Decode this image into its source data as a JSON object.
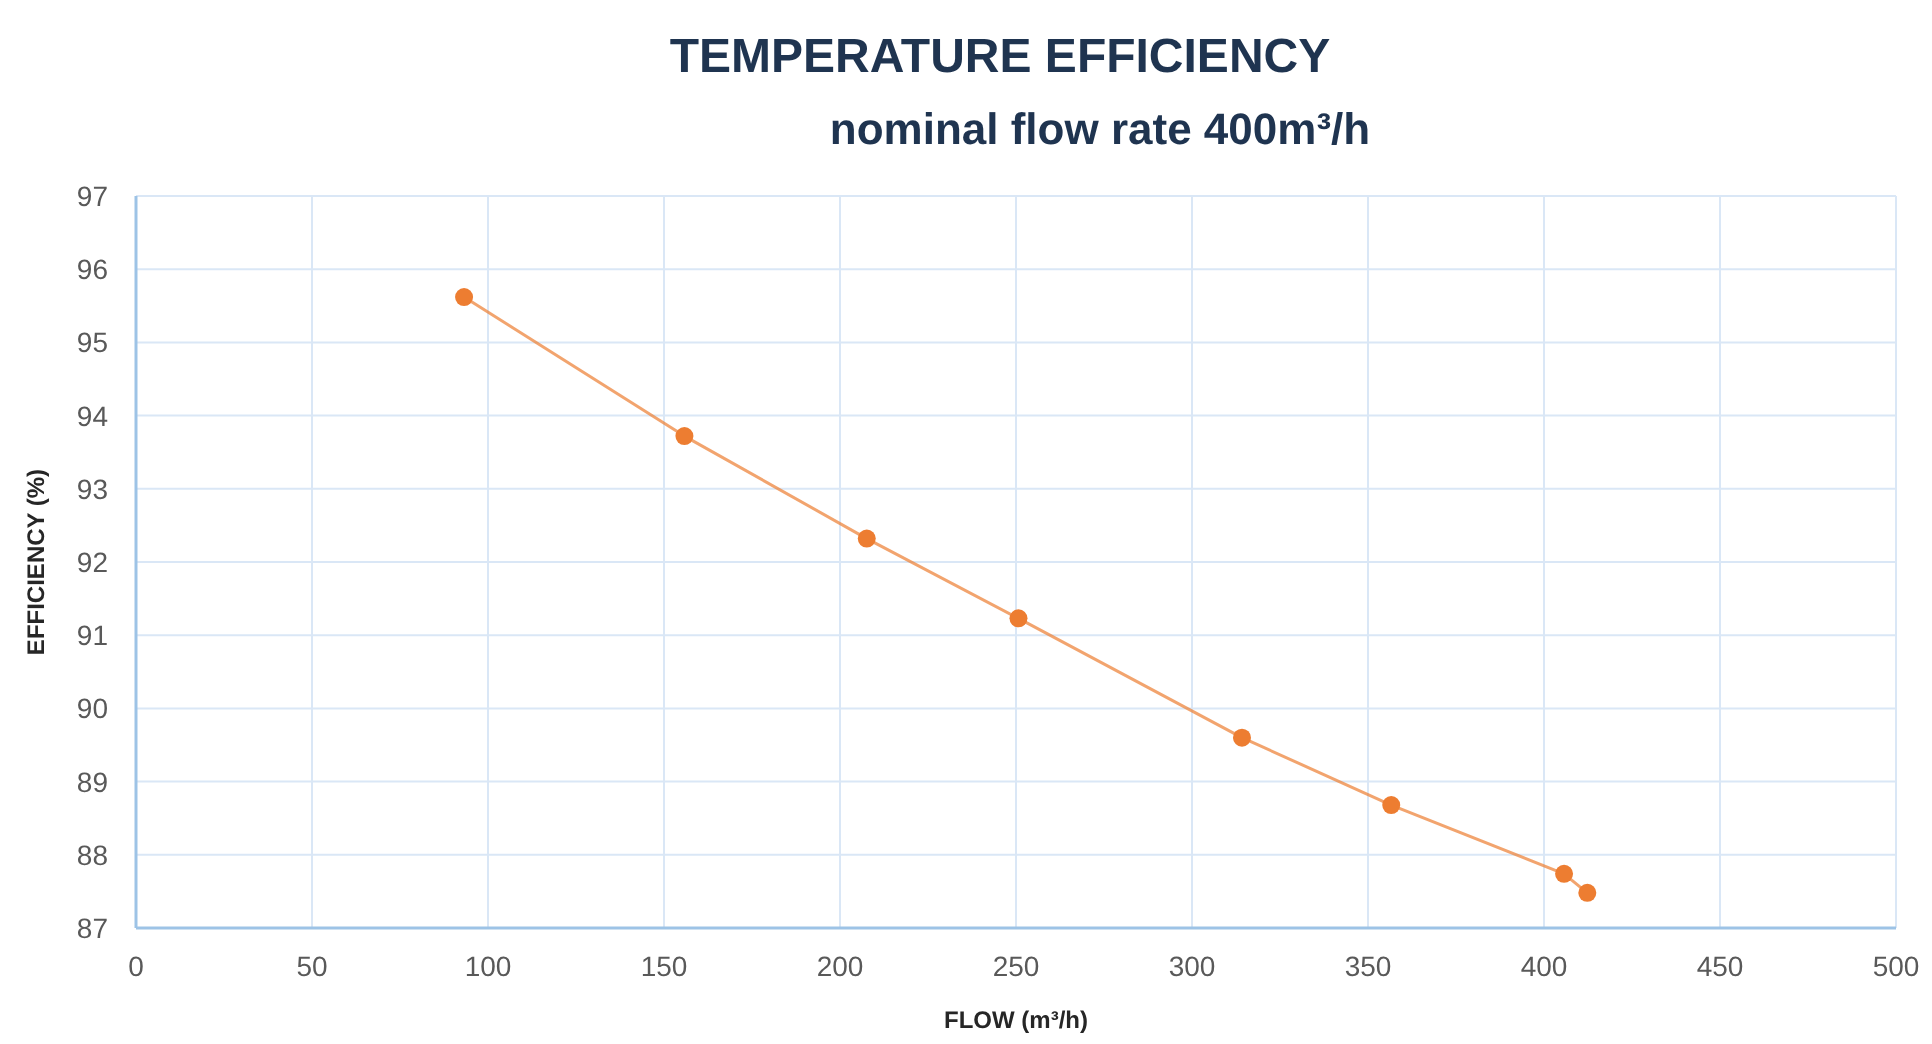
{
  "chart_data": {
    "type": "line",
    "title": "TEMPERATURE EFFICIENCY",
    "subtitle": "nominal flow rate 400m³/h",
    "xlabel": "FLOW (m³/h)",
    "ylabel": "EFFICIENCY (%)",
    "series": [
      {
        "color": "#ed7d31",
        "x": [
          93.2,
          155.8,
          207.6,
          250.7,
          314.2,
          356.6,
          405.7,
          412.3
        ],
        "values": [
          95.62,
          93.72,
          92.32,
          91.23,
          89.6,
          88.68,
          87.74,
          87.48
        ]
      }
    ],
    "xlim": [
      0,
      500
    ],
    "xticks": [
      0,
      50,
      100,
      150,
      200,
      250,
      300,
      350,
      400,
      450,
      500
    ],
    "ylim": [
      87,
      97
    ],
    "yticks": [
      87,
      88,
      89,
      90,
      91,
      92,
      93,
      94,
      95,
      96,
      97
    ],
    "grid": true,
    "marker": "circle",
    "line_style": "solid"
  }
}
